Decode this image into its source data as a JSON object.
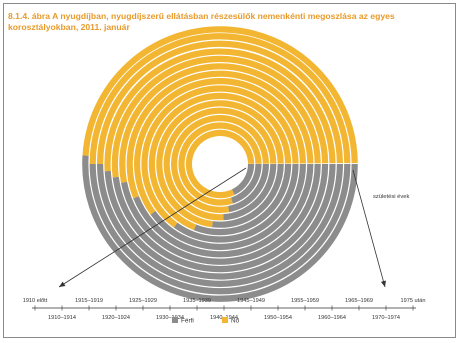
{
  "figure": {
    "title_line1": "8.1.4. ábra A nyugdíjban, nyugdíjszerű ellátásban részesülők nemenkénti megoszlása az egyes",
    "title_line2": "korosztályokban, 2011. január"
  },
  "chart_data": {
    "type": "radial-stacked-bar",
    "title": "8.1.4. ábra A nyugdíjban, nyugdíjszerű ellátásban részesülők nemenkénti megoszlása az egyes korosztályokban, 2011. január",
    "annotation": "születési évek",
    "categories": [
      "1910 előtt",
      "1910–1914",
      "1915–1919",
      "1920–1924",
      "1925–1929",
      "1930–1934",
      "1935–1939",
      "1940–1944",
      "1945–1949",
      "1950–1954",
      "1955–1959",
      "1960–1964",
      "1965–1969",
      "1970–1974",
      "1975 után"
    ],
    "series": [
      {
        "name": "Férfi",
        "color": "#8c8c8c",
        "values": [
          18,
          20,
          22,
          24,
          27,
          31,
          35,
          40,
          44,
          47,
          48,
          49,
          50,
          50,
          51
        ]
      },
      {
        "name": "Nő",
        "color": "#f2b632",
        "values": [
          82,
          80,
          78,
          76,
          73,
          69,
          65,
          60,
          56,
          53,
          52,
          51,
          50,
          50,
          49
        ]
      }
    ],
    "axis_labels_top": [
      "1910 előtt",
      "1915–1919",
      "1925–1929",
      "1935–1939",
      "1945–1949",
      "1955–1959",
      "1965–1969",
      "1975 után"
    ],
    "axis_labels_bottom": [
      "1910–1914",
      "1920–1924",
      "1930–1934",
      "1940–1944",
      "1950–1954",
      "1960–1964",
      "1970–1974"
    ],
    "legend_position": "bottom"
  }
}
